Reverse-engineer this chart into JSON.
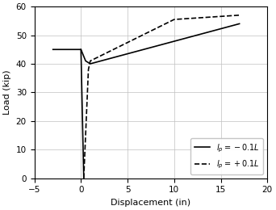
{
  "title": "",
  "xlabel": "Displacement (in)",
  "ylabel": "Load (kip)",
  "xlim": [
    -5,
    20
  ],
  "ylim": [
    0,
    60
  ],
  "xticks": [
    -5,
    0,
    5,
    10,
    15,
    20
  ],
  "yticks": [
    0,
    10,
    20,
    30,
    40,
    50,
    60
  ],
  "solid_line": {
    "x": [
      -3,
      0.0,
      0.5,
      1.0,
      17
    ],
    "y": [
      45,
      45,
      41,
      40,
      54
    ],
    "label": "$l_p = -0.1L$",
    "linestyle": "solid",
    "linewidth": 1.2,
    "color": "black"
  },
  "solid_line_down": {
    "x": [
      0.0,
      0.3
    ],
    "y": [
      45,
      0
    ],
    "linestyle": "solid",
    "linewidth": 1.2,
    "color": "black"
  },
  "dashed_line": {
    "x": [
      0.3,
      0.8,
      1.0,
      10,
      17
    ],
    "y": [
      0,
      38,
      41,
      55.5,
      57
    ],
    "label": "$l_p = +0.1L$",
    "linestyle": "dashed",
    "linewidth": 1.2,
    "color": "black"
  },
  "dashed_line_down": {
    "x": [
      0.3,
      0.4
    ],
    "y": [
      0,
      0
    ],
    "linestyle": "dashed",
    "linewidth": 1.2,
    "color": "black"
  },
  "legend_loc": "lower right",
  "grid": true,
  "background_color": "#ffffff",
  "figsize": [
    3.42,
    2.6
  ],
  "dpi": 100
}
